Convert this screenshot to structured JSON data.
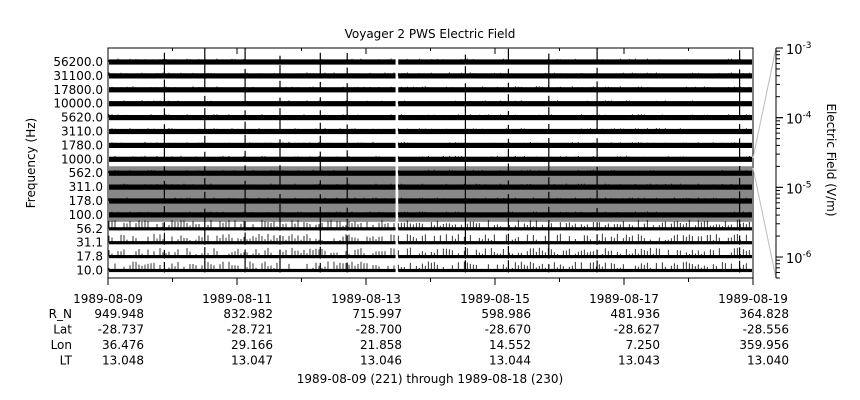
{
  "chart_data": {
    "type": "line",
    "title": "Voyager 2 PWS Electric Field",
    "ylabel": "Frequency (Hz)",
    "channel_labels": [
      "56200.0",
      "31100.0",
      "17800.0",
      "10000.0",
      "5620.0",
      "3110.0",
      "1780.0",
      "1000.0",
      "562.0",
      "311.0",
      "178.0",
      "100.0",
      "56.2",
      "31.1",
      "17.8",
      "10.0"
    ],
    "x_tick_labels": [
      "1989-08-09",
      "1989-08-11",
      "1989-08-13",
      "1989-08-15",
      "1989-08-17",
      "1989-08-19"
    ],
    "x_range": [
      "1989-08-09",
      "1989-08-19"
    ],
    "data_gap": [
      "1989-08-13T11:00",
      "1989-08-13T12:00"
    ],
    "spike_times": [
      "1989-08-09T21:00",
      "1989-08-10T12:00",
      "1989-08-11T03:00",
      "1989-08-11T16:00",
      "1989-08-12T07:00",
      "1989-08-12T17:00",
      "1989-08-14T13:00",
      "1989-08-15T05:00",
      "1989-08-15T20:00",
      "1989-08-16T14:00",
      "1989-08-18T19:00"
    ],
    "ephemeris": {
      "row_labels": [
        "R_N",
        "Lat",
        "Lon",
        "LT"
      ],
      "rows": [
        [
          "949.948",
          "832.982",
          "715.997",
          "598.986",
          "481.936",
          "364.828"
        ],
        [
          "-28.737",
          "-28.721",
          "-28.700",
          "-28.670",
          "-28.627",
          "-28.556"
        ],
        [
          "36.476",
          "29.166",
          "21.858",
          "14.552",
          "7.250",
          "359.956"
        ],
        [
          "13.048",
          "13.047",
          "13.046",
          "13.044",
          "13.043",
          "13.040"
        ]
      ]
    },
    "footer": "1989-08-09 (221) through 1989-08-18 (230)",
    "colorbar": {
      "label": "Electric Field (V/m)",
      "scale": "log",
      "range": [
        5e-07,
        0.001
      ],
      "major_ticks": [
        {
          "base": "10",
          "exp": "-3",
          "value": 0.001
        },
        {
          "base": "10",
          "exp": "-4",
          "value": 0.0001
        },
        {
          "base": "10",
          "exp": "-5",
          "value": 1e-05
        },
        {
          "base": "10",
          "exp": "-6",
          "value": 1e-06
        }
      ]
    },
    "channel_colors": [
      "#000000",
      "#000000",
      "#000000",
      "#000000",
      "#000000",
      "#000000",
      "#000000",
      "#000000",
      "#888888",
      "#888888",
      "#888888",
      "#888888",
      "#000000",
      "#000000",
      "#000000",
      "#000000"
    ],
    "background_noise_color": "#888888"
  }
}
